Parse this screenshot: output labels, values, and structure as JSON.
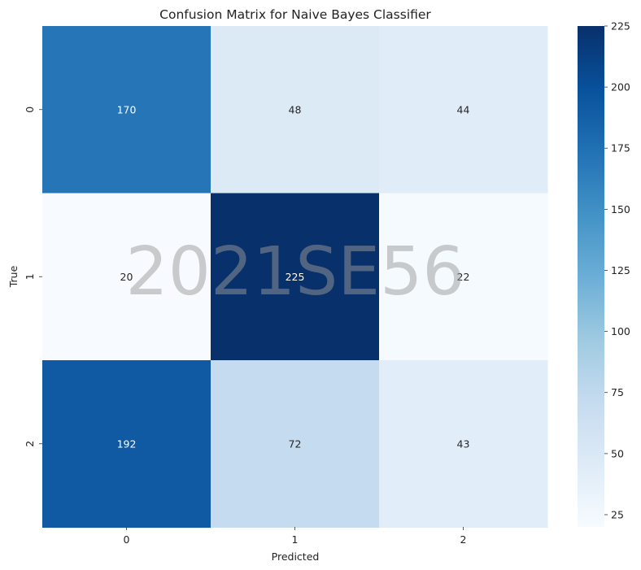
{
  "chart_data": {
    "type": "heatmap",
    "title": "Confusion Matrix for Naive Bayes Classifier",
    "xlabel": "Predicted",
    "ylabel": "True",
    "x_categories": [
      "0",
      "1",
      "2"
    ],
    "y_categories": [
      "0",
      "1",
      "2"
    ],
    "values": [
      [
        170,
        48,
        44
      ],
      [
        20,
        225,
        22
      ],
      [
        192,
        72,
        43
      ]
    ],
    "colormap": "Blues",
    "colorbar": {
      "vmin": 20,
      "vmax": 225,
      "ticks": [
        25,
        50,
        75,
        100,
        125,
        150,
        175,
        200,
        225
      ]
    },
    "watermark": "2021SE56"
  }
}
